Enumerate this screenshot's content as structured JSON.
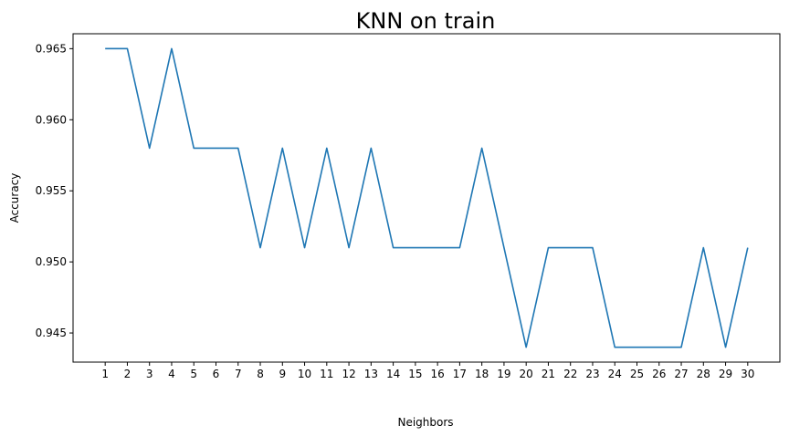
{
  "chart_data": {
    "type": "line",
    "title": "KNN on train",
    "xlabel": "Neighbors",
    "ylabel": "Accuracy",
    "x": [
      1,
      2,
      3,
      4,
      5,
      6,
      7,
      8,
      9,
      10,
      11,
      12,
      13,
      14,
      15,
      16,
      17,
      18,
      19,
      20,
      21,
      22,
      23,
      24,
      25,
      26,
      27,
      28,
      29,
      30
    ],
    "x_tick_labels": [
      "1",
      "2",
      "3",
      "4",
      "5",
      "6",
      "7",
      "8",
      "9",
      "10",
      "11",
      "12",
      "13",
      "14",
      "15",
      "16",
      "17",
      "18",
      "19",
      "20",
      "21",
      "22",
      "23",
      "24",
      "25",
      "26",
      "27",
      "28",
      "29",
      "30"
    ],
    "series": [
      {
        "color": "#1f77b4",
        "values": [
          0.965,
          0.965,
          0.958,
          0.965,
          0.958,
          0.958,
          0.958,
          0.951,
          0.958,
          0.951,
          0.958,
          0.951,
          0.958,
          0.951,
          0.951,
          0.951,
          0.951,
          0.958,
          0.951,
          0.944,
          0.951,
          0.951,
          0.951,
          0.944,
          0.944,
          0.944,
          0.944,
          0.951,
          0.944,
          0.951
        ]
      }
    ],
    "y_ticks": [
      0.945,
      0.95,
      0.955,
      0.96,
      0.965
    ],
    "y_tick_labels": [
      "0.945",
      "0.950",
      "0.955",
      "0.960",
      "0.965"
    ],
    "xlim": [
      -0.45,
      31.45
    ],
    "ylim": [
      0.94295,
      0.96605
    ],
    "grid": false,
    "legend": false
  }
}
